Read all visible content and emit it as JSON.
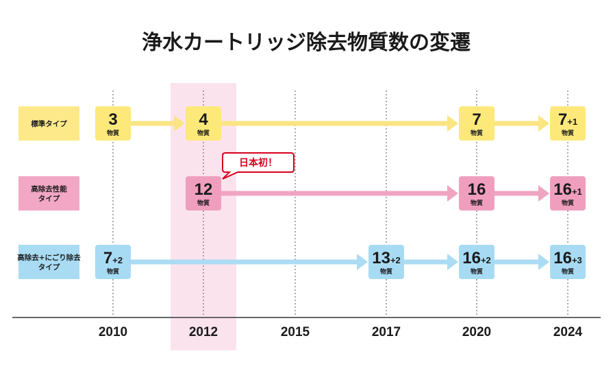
{
  "chart_data": {
    "type": "timeline",
    "title": "浄水カートリッジ除去物質数の変遷",
    "years": [
      "2010",
      "2012",
      "2015",
      "2017",
      "2020",
      "2024"
    ],
    "highlight_year": "2012",
    "unit_label": "物質",
    "callout": {
      "text": "日本初！",
      "series": 1,
      "year": "2012"
    },
    "series": [
      {
        "name": "標準タイプ",
        "name_lines": [
          "標準タイプ"
        ],
        "color": "#fce97a",
        "arrow_color": "#fbe583",
        "label_bg": "#fde98a",
        "points": [
          {
            "year": "2010",
            "value": "3",
            "plus": ""
          },
          {
            "year": "2012",
            "value": "4",
            "plus": ""
          },
          {
            "year": "2020",
            "value": "7",
            "plus": ""
          },
          {
            "year": "2024",
            "value": "7",
            "plus": "+1"
          }
        ]
      },
      {
        "name": "高除去性能タイプ",
        "name_lines": [
          "高除去性能",
          "タイプ"
        ],
        "color": "#ef9fbd",
        "arrow_color": "#f0a4c1",
        "label_bg": "#f2a7c4",
        "points": [
          {
            "year": "2012",
            "value": "12",
            "plus": ""
          },
          {
            "year": "2020",
            "value": "16",
            "plus": ""
          },
          {
            "year": "2024",
            "value": "16",
            "plus": "+1"
          }
        ]
      },
      {
        "name": "高除去+にごり除去タイプ",
        "name_lines": [
          "高除去+にごり除去",
          "タイプ"
        ],
        "color": "#a7dbf4",
        "arrow_color": "#acdcf3",
        "label_bg": "#a9dbf3",
        "points": [
          {
            "year": "2010",
            "value": "7",
            "plus": "+2"
          },
          {
            "year": "2017",
            "value": "13",
            "plus": "+2"
          },
          {
            "year": "2020",
            "value": "16",
            "plus": "+2"
          },
          {
            "year": "2024",
            "value": "16",
            "plus": "+3"
          }
        ]
      }
    ],
    "highlight_color": "#fbe3ee",
    "callout_color": "#d6001c"
  }
}
